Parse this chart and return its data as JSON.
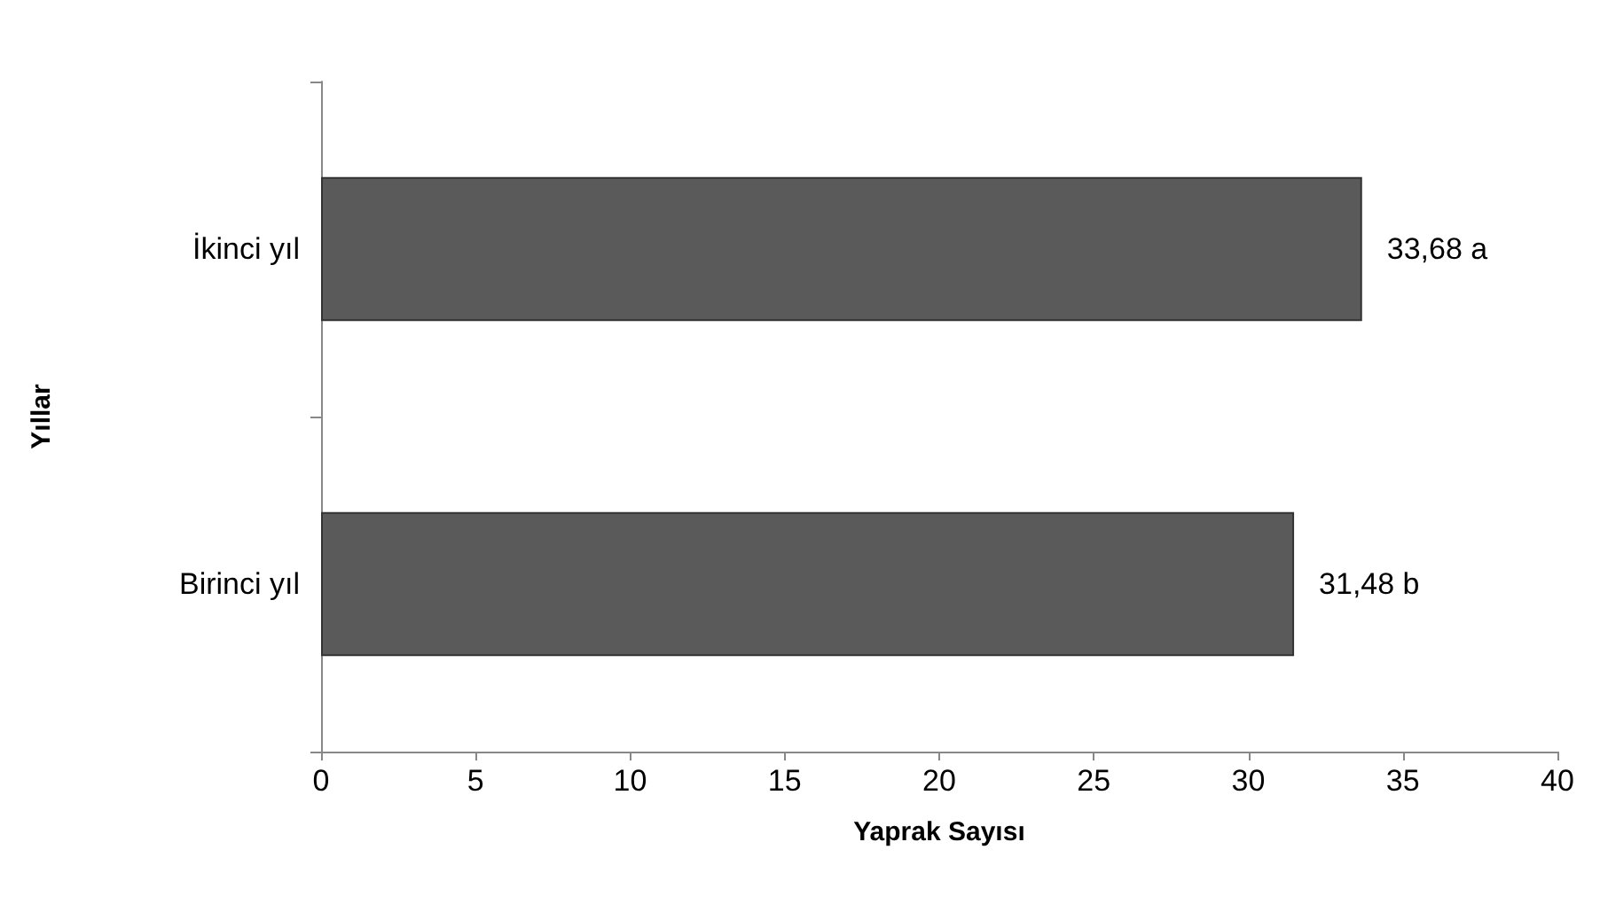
{
  "chart_data": {
    "type": "bar",
    "orientation": "horizontal",
    "xlabel": "Yaprak Sayısı",
    "ylabel": "Yıllar",
    "categories": [
      "İkinci yıl",
      "Birinci yıl"
    ],
    "values": [
      33.68,
      31.48
    ],
    "value_labels": [
      "33,68 a",
      "31,48 b"
    ],
    "color": "#5a5a5a",
    "xlim": [
      0,
      40
    ],
    "xticks": [
      0,
      5,
      10,
      15,
      20,
      25,
      30,
      35,
      40
    ],
    "grid": false
  }
}
